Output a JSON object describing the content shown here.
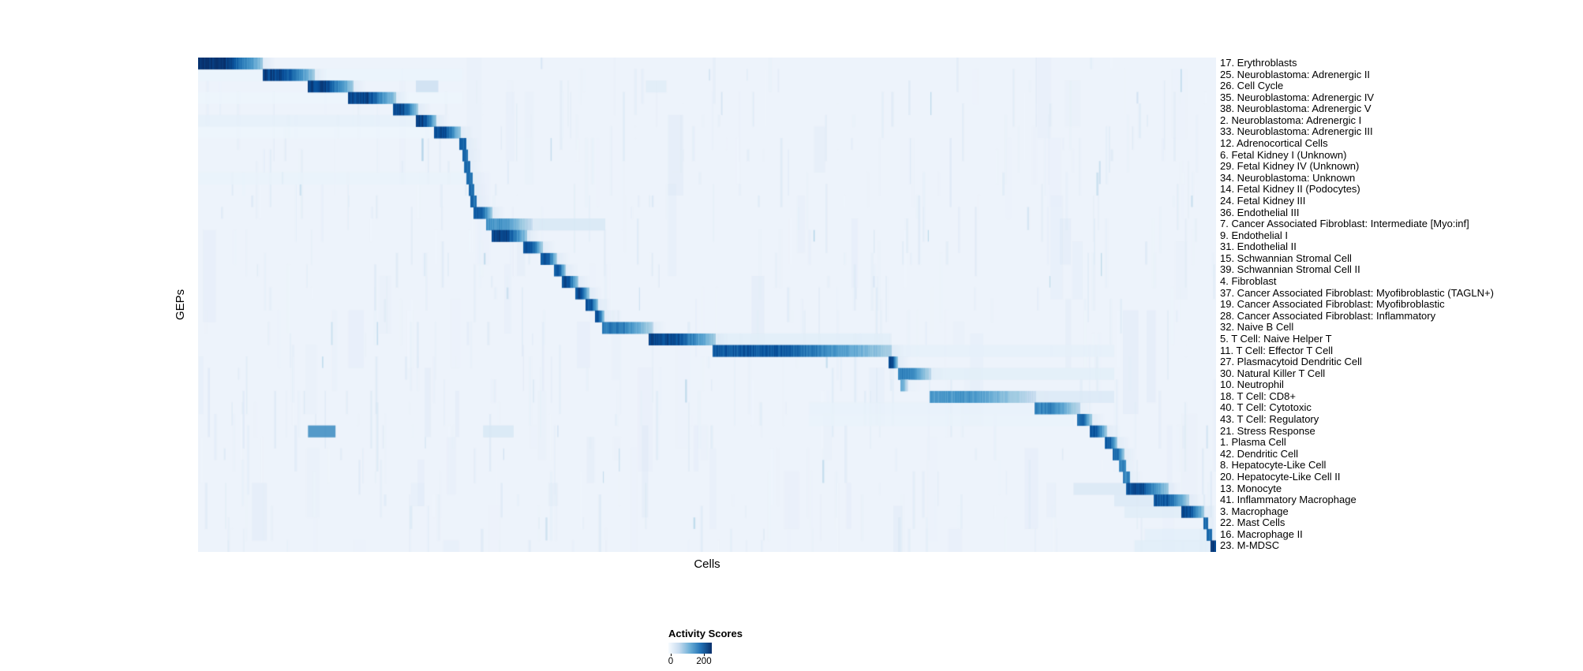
{
  "figure": {
    "xlabel": "Cells",
    "ylabel": "GEPs"
  },
  "legend": {
    "title": "Activity Scores",
    "tick_min": "0",
    "tick_max": "200"
  },
  "colors": {
    "background": "#ffffff",
    "heatmap_base": "#edf3fb",
    "colormap_low": "#f7fbff",
    "colormap_mid": "#6baed6",
    "colormap_high": "#08306b"
  },
  "chart_data": {
    "type": "heatmap",
    "title": "",
    "xlabel": "Cells",
    "ylabel": "GEPs",
    "legend_position": "bottom-center",
    "grid": false,
    "colorbar": {
      "title": "Activity Scores",
      "ticks": [
        0,
        200
      ],
      "range": [
        0,
        250
      ],
      "colormap": "Blues"
    },
    "x_range": [
      0,
      1
    ],
    "rows": [
      {
        "label": "17. Erythroblasts",
        "x": [
          0.0,
          0.063
        ],
        "peak": 250
      },
      {
        "label": "25. Neuroblastoma: Adrenergic II",
        "x": [
          0.064,
          0.114
        ],
        "peak": 230,
        "extra": [
          [
            0.0,
            0.26,
            16
          ]
        ]
      },
      {
        "label": "26. Cell Cycle",
        "x": [
          0.108,
          0.152
        ],
        "peak": 230,
        "extra": [
          [
            0.214,
            0.236,
            55
          ],
          [
            0.44,
            0.46,
            30
          ]
        ]
      },
      {
        "label": "35. Neuroblastoma: Adrenergic IV",
        "x": [
          0.148,
          0.194
        ],
        "peak": 230,
        "extra": [
          [
            0.0,
            0.26,
            14
          ]
        ]
      },
      {
        "label": "38. Neuroblastoma: Adrenergic V",
        "x": [
          0.192,
          0.216
        ],
        "peak": 220
      },
      {
        "label": "2. Neuroblastoma: Adrenergic I",
        "x": [
          0.214,
          0.234
        ],
        "peak": 230,
        "extra": [
          [
            0.0,
            0.214,
            22
          ]
        ]
      },
      {
        "label": "33. Neuroblastoma: Adrenergic III",
        "x": [
          0.232,
          0.258
        ],
        "peak": 220,
        "extra": [
          [
            0.0,
            0.23,
            14
          ]
        ]
      },
      {
        "label": "12. Adrenocortical Cells",
        "x": [
          0.257,
          0.263
        ],
        "peak": 200
      },
      {
        "label": "6. Fetal Kidney I (Unknown)",
        "x": [
          0.26,
          0.265
        ],
        "peak": 190
      },
      {
        "label": "29. Fetal Kidney IV (Unknown)",
        "x": [
          0.262,
          0.267
        ],
        "peak": 190
      },
      {
        "label": "34. Neuroblastoma: Unknown",
        "x": [
          0.264,
          0.269
        ],
        "peak": 190,
        "extra": [
          [
            0.0,
            0.26,
            18
          ]
        ]
      },
      {
        "label": "14. Fetal Kidney II (Podocytes)",
        "x": [
          0.266,
          0.271
        ],
        "peak": 190
      },
      {
        "label": "24. Fetal Kidney III",
        "x": [
          0.268,
          0.273
        ],
        "peak": 190
      },
      {
        "label": "36. Endothelial III",
        "x": [
          0.271,
          0.289
        ],
        "peak": 210
      },
      {
        "label": "7. Cancer Associated Fibroblast: Intermediate [Myo:inf]",
        "x": [
          0.283,
          0.328
        ],
        "peak": 150,
        "extra": [
          [
            0.328,
            0.4,
            40
          ]
        ]
      },
      {
        "label": "9. Endothelial I",
        "x": [
          0.289,
          0.323
        ],
        "peak": 235
      },
      {
        "label": "31. Endothelial II",
        "x": [
          0.32,
          0.338
        ],
        "peak": 220
      },
      {
        "label": "15. Schwannian Stromal Cell",
        "x": [
          0.337,
          0.352
        ],
        "peak": 220
      },
      {
        "label": "39. Schwannian Stromal Cell II",
        "x": [
          0.35,
          0.361
        ],
        "peak": 210
      },
      {
        "label": "4. Fibroblast",
        "x": [
          0.358,
          0.373
        ],
        "peak": 220
      },
      {
        "label": "37. Cancer Associated Fibroblast: Myofibroblastic (TAGLN+)",
        "x": [
          0.371,
          0.384
        ],
        "peak": 220
      },
      {
        "label": "19. Cancer Associated Fibroblast: Myofibroblastic",
        "x": [
          0.381,
          0.393
        ],
        "peak": 220
      },
      {
        "label": "28. Cancer Associated Fibroblast: Inflammatory",
        "x": [
          0.39,
          0.399
        ],
        "peak": 210
      },
      {
        "label": "32. Naive B Cell",
        "x": [
          0.397,
          0.447
        ],
        "peak": 180
      },
      {
        "label": "5. T Cell: Naive Helper T",
        "x": [
          0.443,
          0.508
        ],
        "peak": 225,
        "extra": [
          [
            0.51,
            0.68,
            28
          ]
        ]
      },
      {
        "label": "11. T Cell: Effector T Cell",
        "x": [
          0.506,
          0.681
        ],
        "peak": 210,
        "extra": [
          [
            0.681,
            0.9,
            22
          ]
        ]
      },
      {
        "label": "27. Plasmacytoid Dendritic Cell",
        "x": [
          0.679,
          0.687
        ],
        "peak": 220
      },
      {
        "label": "30. Natural Killer T Cell",
        "x": [
          0.688,
          0.72
        ],
        "peak": 170,
        "extra": [
          [
            0.72,
            0.9,
            26
          ]
        ]
      },
      {
        "label": "10. Neutrophil",
        "x": [
          0.69,
          0.697
        ],
        "peak": 120
      },
      {
        "label": "18. T Cell: CD8+",
        "x": [
          0.719,
          0.823
        ],
        "peak": 150,
        "extra": [
          [
            0.823,
            0.9,
            35
          ]
        ]
      },
      {
        "label": "40. T Cell: Cytotoxic",
        "x": [
          0.822,
          0.866
        ],
        "peak": 170,
        "extra": [
          [
            0.6,
            0.82,
            20
          ]
        ]
      },
      {
        "label": "43. T Cell: Regulatory",
        "x": [
          0.864,
          0.878
        ],
        "peak": 195,
        "extra": [
          [
            0.6,
            0.86,
            18
          ]
        ]
      },
      {
        "label": "21. Stress Response",
        "x": [
          0.876,
          0.893
        ],
        "peak": 210,
        "extra": [
          [
            0.108,
            0.135,
            165
          ],
          [
            0.28,
            0.31,
            40
          ]
        ]
      },
      {
        "label": "1. Plasma Cell",
        "x": [
          0.891,
          0.903
        ],
        "peak": 205
      },
      {
        "label": "42. Dendritic Cell",
        "x": [
          0.899,
          0.91
        ],
        "peak": 195
      },
      {
        "label": "8. Hepatocyte-Like Cell",
        "x": [
          0.905,
          0.911
        ],
        "peak": 170
      },
      {
        "label": "20. Hepatocyte-Like Cell II",
        "x": [
          0.909,
          0.915
        ],
        "peak": 170
      },
      {
        "label": "13. Monocyte",
        "x": [
          0.912,
          0.953
        ],
        "peak": 220,
        "extra": [
          [
            0.86,
            0.912,
            38
          ]
        ]
      },
      {
        "label": "41. Inflammatory Macrophage",
        "x": [
          0.939,
          0.973
        ],
        "peak": 210,
        "extra": [
          [
            0.9,
            0.939,
            35
          ]
        ]
      },
      {
        "label": "3. Macrophage",
        "x": [
          0.966,
          0.988
        ],
        "peak": 220,
        "extra": [
          [
            0.91,
            0.966,
            30
          ]
        ]
      },
      {
        "label": "22. Mast Cells",
        "x": [
          0.988,
          0.992
        ],
        "peak": 190
      },
      {
        "label": "16. Macrophage II",
        "x": [
          0.991,
          0.996
        ],
        "peak": 190,
        "extra": [
          [
            0.93,
            0.99,
            25
          ]
        ]
      },
      {
        "label": "23. M-MDSC",
        "x": [
          0.995,
          1.0
        ],
        "peak": 235,
        "extra": [
          [
            0.92,
            0.995,
            28
          ]
        ]
      }
    ]
  }
}
